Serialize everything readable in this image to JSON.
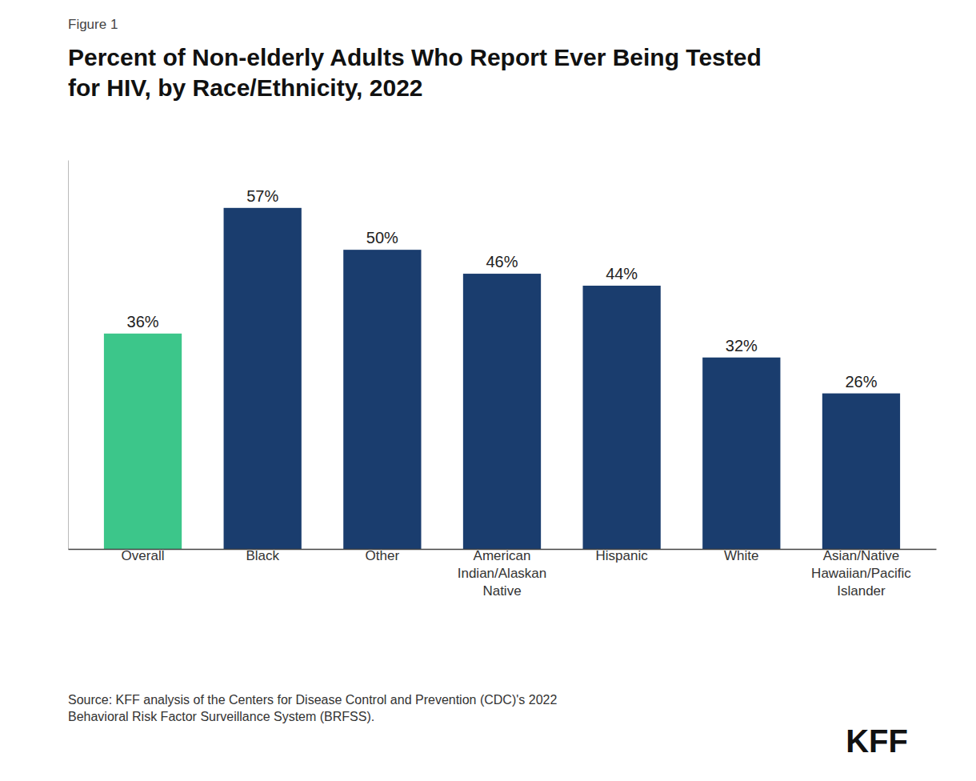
{
  "chart_data": {
    "type": "bar",
    "title": "Percent of Non-elderly Adults Who Report Ever Being Tested\nfor HIV, by Race/Ethnicity, 2022",
    "categories": [
      "Overall",
      "Black",
      "Other",
      "American\nIndian/Alaskan\nNative",
      "Hispanic",
      "White",
      "Asian/Native\nHawaiian/Pacific\nIslander"
    ],
    "values": [
      36,
      57,
      50,
      46,
      44,
      32,
      26
    ],
    "value_labels": [
      "36%",
      "57%",
      "50%",
      "46%",
      "44%",
      "32%",
      "26%"
    ],
    "colors": [
      "#3cc68a",
      "#1a3d6e",
      "#1a3d6e",
      "#1a3d6e",
      "#1a3d6e",
      "#1a3d6e",
      "#1a3d6e"
    ],
    "ylim": [
      0,
      65
    ],
    "yticks": [],
    "grid": false,
    "data_labels": true,
    "tick_labels": "x",
    "annotations": [
      "Figure 1",
      "Source: KFF analysis of the Centers for Disease Control and Prevention (CDC)'s 2022\nBehavioral Risk Factor Surveillance System (BRFSS).",
      "KFF"
    ]
  }
}
